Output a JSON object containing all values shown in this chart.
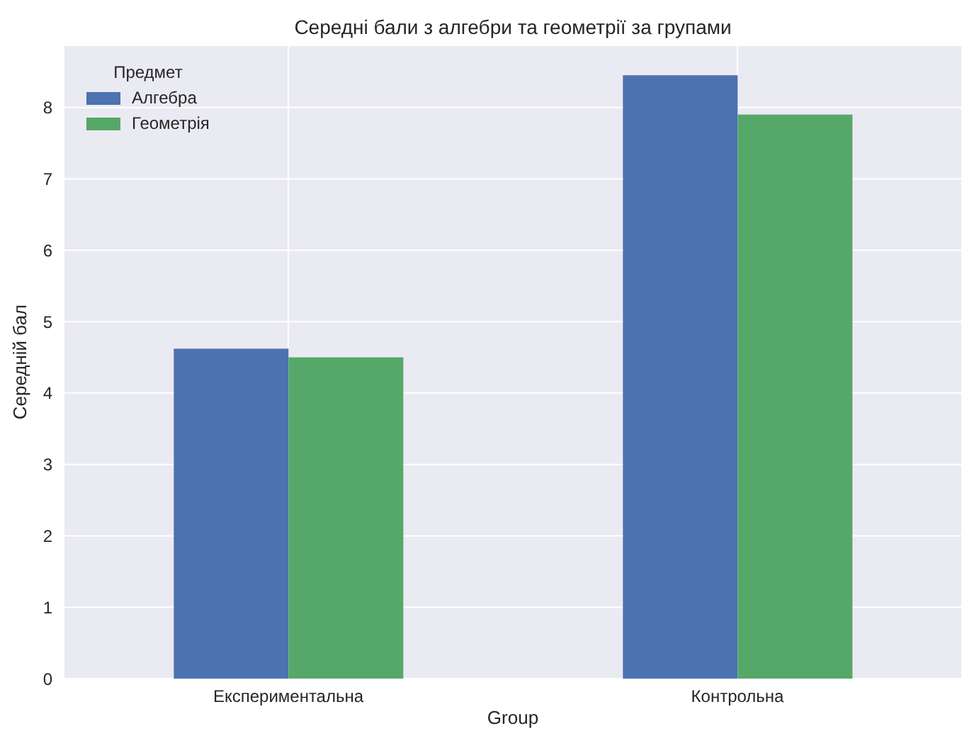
{
  "chart_data": {
    "type": "bar",
    "title": "Середні бали з алгебри та геометрії за групами",
    "xlabel": "Group",
    "ylabel": "Середній бал",
    "legend_title": "Предмет",
    "categories": [
      "Експериментальна",
      "Контрольна"
    ],
    "series": [
      {
        "name": "Алгебра",
        "color": "#4c72b0",
        "values": [
          4.62,
          8.45
        ]
      },
      {
        "name": "Геометрія",
        "color": "#55a868",
        "values": [
          4.5,
          7.9
        ]
      }
    ],
    "ylim": [
      0,
      8.87
    ],
    "yticks": [
      0,
      1,
      2,
      3,
      4,
      5,
      6,
      7,
      8
    ],
    "grid": true,
    "legend": "top left"
  }
}
